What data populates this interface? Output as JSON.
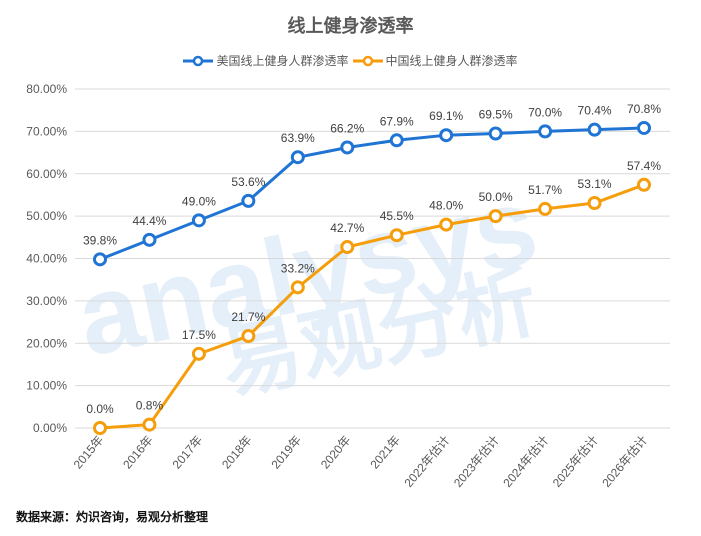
{
  "watermark": {
    "text_en": "analysys",
    "text_cn": "易观分析"
  },
  "source": "数据来源：灼识咨询，易观分析整理",
  "colors": {
    "us": "#1f74d4",
    "cn": "#f59d0a",
    "grid": "#d9d9d9",
    "text": "#595959"
  },
  "chart_data": {
    "type": "line",
    "title": "线上健身渗透率",
    "categories": [
      "2015年",
      "2016年",
      "2017年",
      "2018年",
      "2019年",
      "2020年",
      "2021年",
      "2022年估计",
      "2023年估计",
      "2024年估计",
      "2025年估计",
      "2026年估计"
    ],
    "ylim": [
      0,
      80
    ],
    "yticks": [
      "0.00%",
      "10.00%",
      "20.00%",
      "30.00%",
      "40.00%",
      "50.00%",
      "60.00%",
      "70.00%",
      "80.00%"
    ],
    "grid": true,
    "legend": "top",
    "series": [
      {
        "name": "美国线上健身人群渗透率",
        "values": [
          39.8,
          44.4,
          49.0,
          53.6,
          63.9,
          66.2,
          67.9,
          69.1,
          69.5,
          70.0,
          70.4,
          70.8
        ],
        "labels": [
          "39.8%",
          "44.4%",
          "49.0%",
          "53.6%",
          "63.9%",
          "66.2%",
          "67.9%",
          "69.1%",
          "69.5%",
          "70.0%",
          "70.4%",
          "70.8%"
        ]
      },
      {
        "name": "中国线上健身人群渗透率",
        "values": [
          0.0,
          0.8,
          17.5,
          21.7,
          33.2,
          42.7,
          45.5,
          48.0,
          50.0,
          51.7,
          53.1,
          57.4
        ],
        "labels": [
          "0.0%",
          "0.8%",
          "17.5%",
          "21.7%",
          "33.2%",
          "42.7%",
          "45.5%",
          "48.0%",
          "50.0%",
          "51.7%",
          "53.1%",
          "57.4%"
        ]
      }
    ]
  }
}
